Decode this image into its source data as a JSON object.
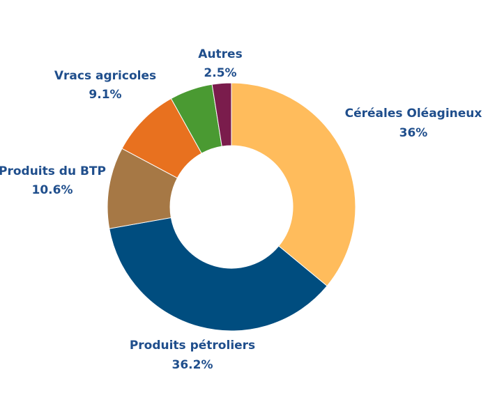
{
  "chart_data": {
    "type": "pie",
    "variant": "donut",
    "title": "",
    "legend": "none",
    "label_color": "#1f4e8c",
    "slices": [
      {
        "label": "Céréales Oléagineux",
        "value": 36,
        "display": "36%",
        "color": "#ffbc5c"
      },
      {
        "label": "Produits pétroliers",
        "value": 36.2,
        "display": "36.2%",
        "color": "#004d7f"
      },
      {
        "label": "Produits du BTP",
        "value": 10.6,
        "display": "10.6%",
        "color": "#a67845"
      },
      {
        "label": "Vracs agricoles",
        "value": 9.1,
        "display": "9.1%",
        "color": "#e8711f"
      },
      {
        "label": "Autres",
        "value": 2.5,
        "display": "2.5%",
        "color": "#7a1c4c"
      }
    ],
    "extra_slice_color": "#4a9a32"
  }
}
